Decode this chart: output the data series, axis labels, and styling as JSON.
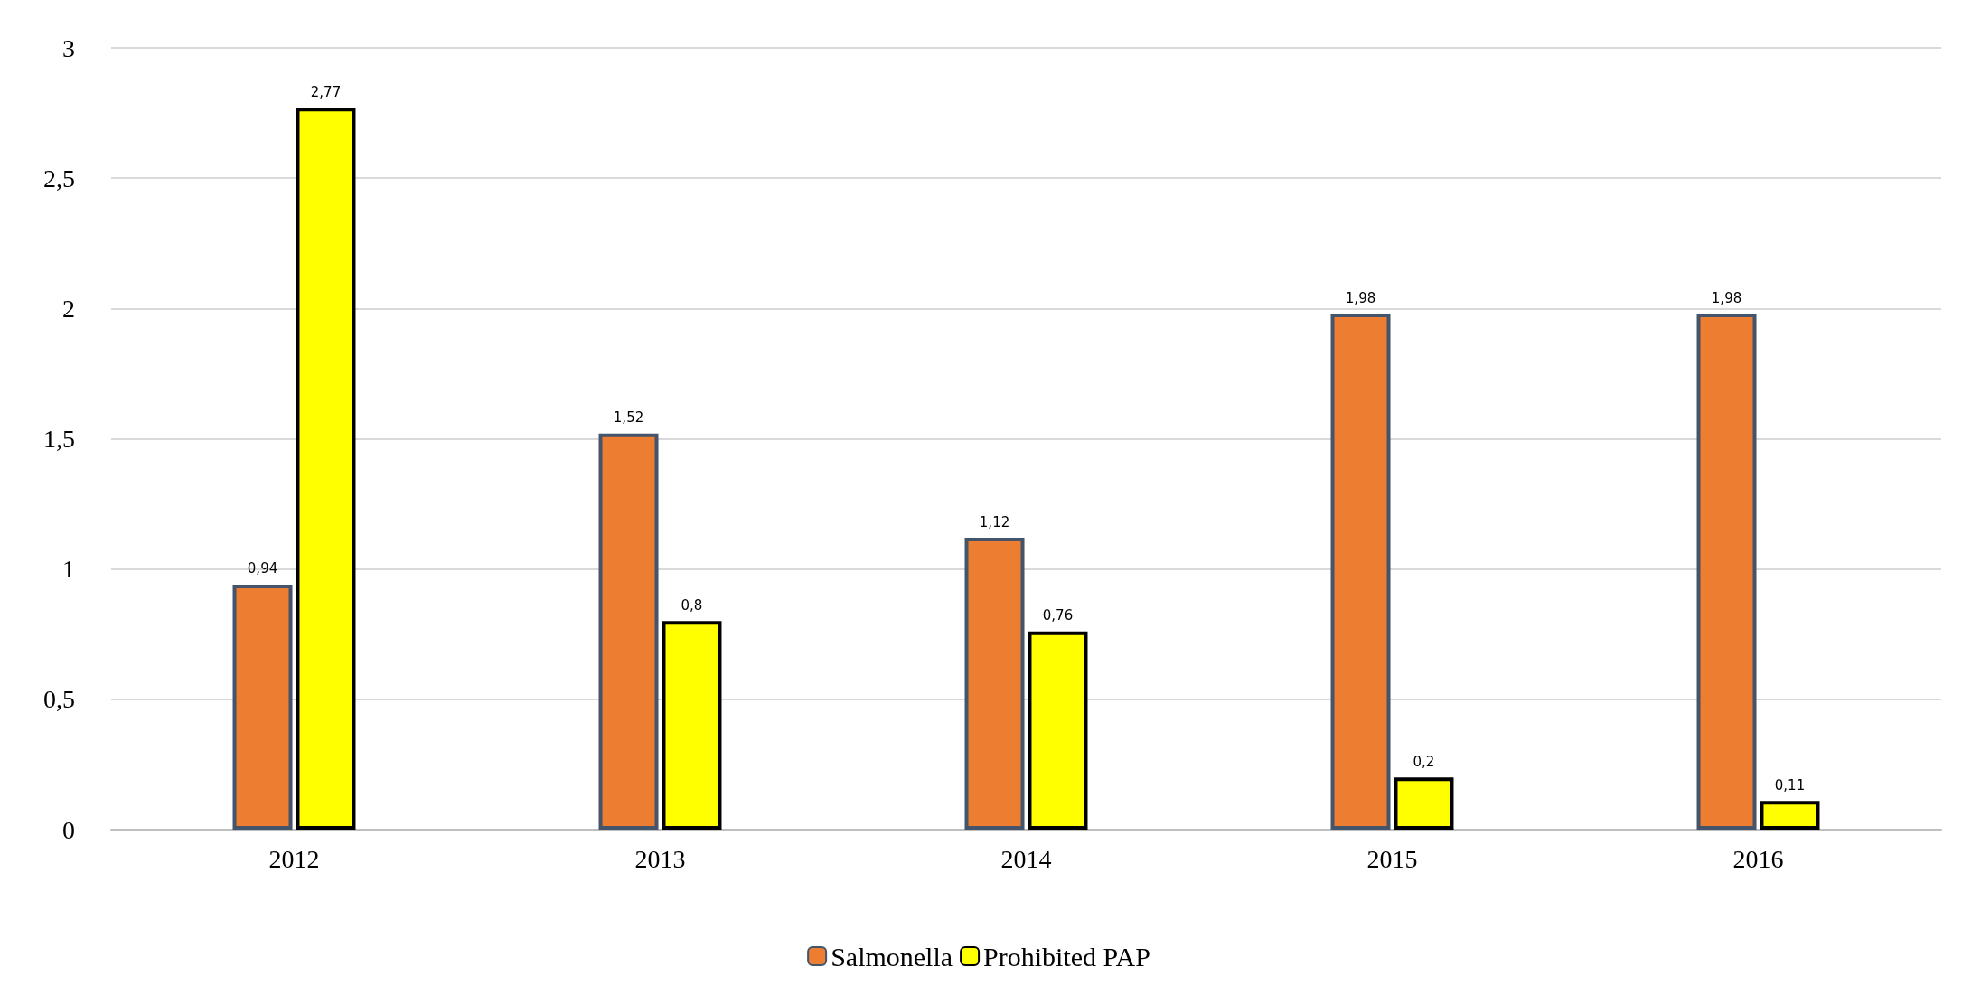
{
  "chart_data": {
    "type": "bar",
    "categories": [
      "2012",
      "2013",
      "2014",
      "2015",
      "2016"
    ],
    "series": [
      {
        "name": "Salmonella",
        "color": "#ed7d31",
        "values": [
          0.94,
          1.52,
          1.12,
          1.98,
          1.98
        ],
        "value_labels": [
          "0,94",
          "1,52",
          "1,12",
          "1,98",
          "1,98"
        ]
      },
      {
        "name": "Prohibited PAP",
        "color": "#ffff00",
        "values": [
          2.77,
          0.8,
          0.76,
          0.2,
          0.11
        ],
        "value_labels": [
          "2,77",
          "0,8",
          "0,76",
          "0,2",
          "0,11"
        ]
      }
    ],
    "ylim": [
      0,
      3
    ],
    "yticks": [
      0,
      {
        "value": 0.5,
        "label": "0,5"
      },
      1,
      {
        "value": 1.5,
        "label": "1,5"
      },
      2,
      {
        "value": 2.5,
        "label": "2,5"
      },
      3
    ],
    "grid": "y",
    "legend": "bottom"
  }
}
